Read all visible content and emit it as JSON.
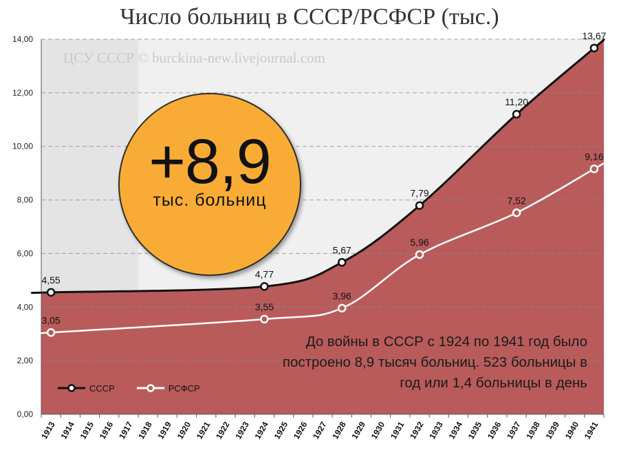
{
  "title": "Число больниц в СССР/РСФСР (тыс.)",
  "credit": "ЦСУ СССР © burckina-new.livejournal.com",
  "badge": {
    "value": "+8,9",
    "unit": "тыс. больниц"
  },
  "note": "До войны в СССР с 1924 по 1941 год было построено 8,9 тысяч больниц. 523 больницы в год или 1,4 больницы в день",
  "colors": {
    "area": "#b95b5b",
    "ussr_line": "#111111",
    "rsfsr_line": "#ffffff",
    "badge": "#f9ac35",
    "shade": "#e4e4e4",
    "plot_bg": "#f0f0f0"
  },
  "chart_data": {
    "type": "area",
    "ylim": [
      0,
      14
    ],
    "yticks": [
      "0,00",
      "2,00",
      "4,00",
      "6,00",
      "8,00",
      "10,00",
      "12,00",
      "14,00"
    ],
    "categories": [
      "1913",
      "1914",
      "1915",
      "1916",
      "1917",
      "1918",
      "1919",
      "1920",
      "1921",
      "1922",
      "1923",
      "1924",
      "1925",
      "1926",
      "1927",
      "1928",
      "1929",
      "1930",
      "1931",
      "1932",
      "1933",
      "1934",
      "1935",
      "1936",
      "1937",
      "1938",
      "1939",
      "1940",
      "1941"
    ],
    "shaded_period": [
      "1913",
      "1917"
    ],
    "grid": true,
    "legend_position": "bottom-left",
    "series": [
      {
        "name": "СССР",
        "type": "area",
        "points": [
          {
            "x": "1913",
            "y": 4.55,
            "label": "4,55"
          },
          {
            "x": "1924",
            "y": 4.77,
            "label": "4,77"
          },
          {
            "x": "1928",
            "y": 5.67,
            "label": "5,67"
          },
          {
            "x": "1932",
            "y": 7.79,
            "label": "7,79"
          },
          {
            "x": "1937",
            "y": 11.2,
            "label": "11,20"
          },
          {
            "x": "1941",
            "y": 13.67,
            "label": "13,67"
          }
        ]
      },
      {
        "name": "РСФСР",
        "type": "line",
        "points": [
          {
            "x": "1913",
            "y": 3.05,
            "label": "3,05"
          },
          {
            "x": "1924",
            "y": 3.55,
            "label": "3,55"
          },
          {
            "x": "1928",
            "y": 3.96,
            "label": "3,96"
          },
          {
            "x": "1932",
            "y": 5.96,
            "label": "5,96"
          },
          {
            "x": "1937",
            "y": 7.52,
            "label": "7,52"
          },
          {
            "x": "1941",
            "y": 9.16,
            "label": "9,16"
          }
        ]
      }
    ]
  }
}
